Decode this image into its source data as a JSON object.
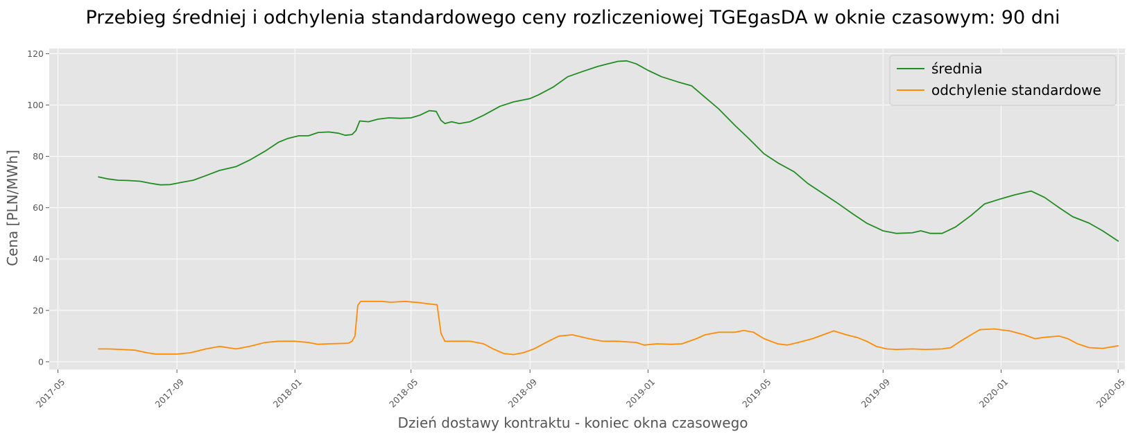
{
  "chart_data": {
    "type": "line",
    "title": "Przebieg średniej i odchylenia standardowego ceny rozliczeniowej TGEgasDA w oknie czasowym: 90 dni",
    "xlabel": "Dzień dostawy kontraktu - koniec okna czasowego",
    "ylabel": "Cena [PLN/MWh]",
    "x_type": "date",
    "xlim": [
      "2017-04-22",
      "2020-05-08"
    ],
    "ylim": [
      -3,
      122
    ],
    "x_ticks": [
      "2017-05-01",
      "2017-09-01",
      "2018-01-01",
      "2018-05-01",
      "2018-09-01",
      "2019-01-01",
      "2019-05-01",
      "2019-09-01",
      "2020-01-01",
      "2020-05-01"
    ],
    "x_tick_labels": [
      "2017-05",
      "2017-09",
      "2018-01",
      "2018-05",
      "2018-09",
      "2019-01",
      "2019-05",
      "2019-09",
      "2020-01",
      "2020-05"
    ],
    "y_ticks": [
      0,
      20,
      40,
      60,
      80,
      100,
      120
    ],
    "y_tick_labels": [
      "0",
      "20",
      "40",
      "60",
      "80",
      "100",
      "120"
    ],
    "grid": true,
    "legend_position": "top-right",
    "series": [
      {
        "name": "średnia",
        "color": "#228b22",
        "points": [
          [
            "2017-06-12",
            72.0
          ],
          [
            "2017-06-22",
            71.2
          ],
          [
            "2017-07-02",
            70.7
          ],
          [
            "2017-07-12",
            70.6
          ],
          [
            "2017-07-25",
            70.3
          ],
          [
            "2017-08-05",
            69.5
          ],
          [
            "2017-08-15",
            68.9
          ],
          [
            "2017-08-25",
            69.0
          ],
          [
            "2017-09-05",
            69.8
          ],
          [
            "2017-09-18",
            70.7
          ],
          [
            "2017-10-01",
            72.5
          ],
          [
            "2017-10-15",
            74.5
          ],
          [
            "2017-11-01",
            76.0
          ],
          [
            "2017-11-15",
            78.5
          ],
          [
            "2017-12-01",
            82.0
          ],
          [
            "2017-12-15",
            85.5
          ],
          [
            "2017-12-25",
            87.0
          ],
          [
            "2018-01-05",
            88.0
          ],
          [
            "2018-01-15",
            88.0
          ],
          [
            "2018-01-25",
            89.3
          ],
          [
            "2018-02-05",
            89.5
          ],
          [
            "2018-02-15",
            89.0
          ],
          [
            "2018-02-22",
            88.2
          ],
          [
            "2018-03-01",
            88.5
          ],
          [
            "2018-03-05",
            90.0
          ],
          [
            "2018-03-09",
            93.8
          ],
          [
            "2018-03-18",
            93.5
          ],
          [
            "2018-03-28",
            94.5
          ],
          [
            "2018-04-08",
            95.0
          ],
          [
            "2018-04-20",
            94.8
          ],
          [
            "2018-05-01",
            95.0
          ],
          [
            "2018-05-10",
            96.0
          ],
          [
            "2018-05-20",
            97.8
          ],
          [
            "2018-05-27",
            97.5
          ],
          [
            "2018-06-01",
            94.0
          ],
          [
            "2018-06-05",
            92.8
          ],
          [
            "2018-06-12",
            93.5
          ],
          [
            "2018-06-20",
            92.8
          ],
          [
            "2018-07-01",
            93.5
          ],
          [
            "2018-07-15",
            96.0
          ],
          [
            "2018-08-01",
            99.5
          ],
          [
            "2018-08-15",
            101.2
          ],
          [
            "2018-09-01",
            102.5
          ],
          [
            "2018-09-10",
            104.0
          ],
          [
            "2018-09-25",
            107.0
          ],
          [
            "2018-10-10",
            111.0
          ],
          [
            "2018-10-25",
            113.0
          ],
          [
            "2018-11-10",
            115.0
          ],
          [
            "2018-11-20",
            116.0
          ],
          [
            "2018-12-01",
            117.0
          ],
          [
            "2018-12-10",
            117.2
          ],
          [
            "2018-12-20",
            116.0
          ],
          [
            "2019-01-01",
            113.5
          ],
          [
            "2019-01-15",
            111.0
          ],
          [
            "2019-02-01",
            109.0
          ],
          [
            "2019-02-15",
            107.5
          ],
          [
            "2019-03-01",
            103.0
          ],
          [
            "2019-03-15",
            98.5
          ],
          [
            "2019-04-01",
            92.0
          ],
          [
            "2019-04-15",
            87.0
          ],
          [
            "2019-05-01",
            81.0
          ],
          [
            "2019-05-15",
            77.5
          ],
          [
            "2019-06-01",
            74.0
          ],
          [
            "2019-06-15",
            69.5
          ],
          [
            "2019-07-01",
            65.5
          ],
          [
            "2019-07-15",
            62.0
          ],
          [
            "2019-08-01",
            57.5
          ],
          [
            "2019-08-15",
            54.0
          ],
          [
            "2019-09-01",
            51.0
          ],
          [
            "2019-09-15",
            50.0
          ],
          [
            "2019-10-01",
            50.2
          ],
          [
            "2019-10-10",
            51.0
          ],
          [
            "2019-10-20",
            50.0
          ],
          [
            "2019-11-01",
            50.0
          ],
          [
            "2019-11-15",
            52.5
          ],
          [
            "2019-12-01",
            57.0
          ],
          [
            "2019-12-15",
            61.5
          ],
          [
            "2020-01-01",
            63.5
          ],
          [
            "2020-01-15",
            65.0
          ],
          [
            "2020-02-01",
            66.5
          ],
          [
            "2020-02-15",
            64.0
          ],
          [
            "2020-03-01",
            60.0
          ],
          [
            "2020-03-15",
            56.5
          ],
          [
            "2020-04-01",
            54.0
          ],
          [
            "2020-04-15",
            51.0
          ],
          [
            "2020-05-01",
            47.0
          ]
        ]
      },
      {
        "name": "odchylenie standardowe",
        "color": "#ff8c00",
        "points": [
          [
            "2017-06-12",
            5.0
          ],
          [
            "2017-06-22",
            5.0
          ],
          [
            "2017-07-05",
            4.8
          ],
          [
            "2017-07-20",
            4.5
          ],
          [
            "2017-08-01",
            3.5
          ],
          [
            "2017-08-10",
            3.0
          ],
          [
            "2017-08-20",
            3.0
          ],
          [
            "2017-09-01",
            3.0
          ],
          [
            "2017-09-15",
            3.5
          ],
          [
            "2017-10-01",
            5.0
          ],
          [
            "2017-10-15",
            6.0
          ],
          [
            "2017-11-01",
            5.0
          ],
          [
            "2017-11-15",
            6.0
          ],
          [
            "2017-12-01",
            7.5
          ],
          [
            "2017-12-15",
            8.0
          ],
          [
            "2018-01-01",
            8.0
          ],
          [
            "2018-01-15",
            7.5
          ],
          [
            "2018-01-25",
            6.8
          ],
          [
            "2018-02-05",
            7.0
          ],
          [
            "2018-02-25",
            7.2
          ],
          [
            "2018-03-01",
            8.0
          ],
          [
            "2018-03-04",
            10.0
          ],
          [
            "2018-03-07",
            22.0
          ],
          [
            "2018-03-10",
            23.5
          ],
          [
            "2018-03-20",
            23.5
          ],
          [
            "2018-04-01",
            23.5
          ],
          [
            "2018-04-10",
            23.2
          ],
          [
            "2018-04-25",
            23.5
          ],
          [
            "2018-05-10",
            23.0
          ],
          [
            "2018-05-20",
            22.5
          ],
          [
            "2018-05-28",
            22.2
          ],
          [
            "2018-06-01",
            11.0
          ],
          [
            "2018-06-05",
            8.0
          ],
          [
            "2018-06-15",
            8.0
          ],
          [
            "2018-07-01",
            8.0
          ],
          [
            "2018-07-15",
            7.0
          ],
          [
            "2018-07-25",
            5.0
          ],
          [
            "2018-08-05",
            3.2
          ],
          [
            "2018-08-15",
            2.8
          ],
          [
            "2018-08-25",
            3.5
          ],
          [
            "2018-09-05",
            5.0
          ],
          [
            "2018-09-20",
            8.0
          ],
          [
            "2018-10-01",
            10.0
          ],
          [
            "2018-10-15",
            10.5
          ],
          [
            "2018-11-01",
            9.0
          ],
          [
            "2018-11-15",
            8.0
          ],
          [
            "2018-12-01",
            8.0
          ],
          [
            "2018-12-20",
            7.5
          ],
          [
            "2018-12-28",
            6.5
          ],
          [
            "2019-01-10",
            7.0
          ],
          [
            "2019-01-25",
            6.8
          ],
          [
            "2019-02-05",
            7.0
          ],
          [
            "2019-02-20",
            9.0
          ],
          [
            "2019-03-01",
            10.5
          ],
          [
            "2019-03-15",
            11.5
          ],
          [
            "2019-04-01",
            11.5
          ],
          [
            "2019-04-10",
            12.2
          ],
          [
            "2019-04-20",
            11.5
          ],
          [
            "2019-05-01",
            9.0
          ],
          [
            "2019-05-15",
            7.0
          ],
          [
            "2019-05-25",
            6.5
          ],
          [
            "2019-06-05",
            7.5
          ],
          [
            "2019-06-20",
            9.0
          ],
          [
            "2019-07-01",
            10.5
          ],
          [
            "2019-07-12",
            12.0
          ],
          [
            "2019-07-25",
            10.5
          ],
          [
            "2019-08-05",
            9.5
          ],
          [
            "2019-08-15",
            8.0
          ],
          [
            "2019-08-25",
            6.0
          ],
          [
            "2019-09-05",
            5.0
          ],
          [
            "2019-09-15",
            4.8
          ],
          [
            "2019-10-01",
            5.0
          ],
          [
            "2019-10-15",
            4.8
          ],
          [
            "2019-11-01",
            5.0
          ],
          [
            "2019-11-10",
            5.5
          ],
          [
            "2019-11-20",
            8.0
          ],
          [
            "2019-12-01",
            10.5
          ],
          [
            "2019-12-10",
            12.5
          ],
          [
            "2019-12-25",
            12.8
          ],
          [
            "2020-01-10",
            12.0
          ],
          [
            "2020-01-25",
            10.5
          ],
          [
            "2020-02-05",
            9.0
          ],
          [
            "2020-02-15",
            9.5
          ],
          [
            "2020-03-01",
            10.0
          ],
          [
            "2020-03-10",
            9.0
          ],
          [
            "2020-03-20",
            7.0
          ],
          [
            "2020-04-01",
            5.5
          ],
          [
            "2020-04-15",
            5.2
          ],
          [
            "2020-05-01",
            6.2
          ]
        ]
      }
    ]
  }
}
